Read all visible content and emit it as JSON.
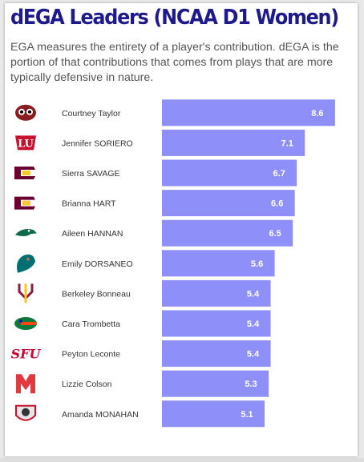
{
  "header": {
    "title": "dEGA Leaders (NCAA D1 Women)",
    "subtitle": "EGA measures the entirety of a player's contribution. dEGA is the portion of that contributions that comes from plays that are more typically defensive in nature."
  },
  "colors": {
    "title": "#1f1a8c",
    "bar": "#8e8ff8",
    "value_text": "#ffffff"
  },
  "chart_data": {
    "type": "bar",
    "orientation": "horizontal",
    "categories": [
      "Courtney Taylor",
      "Jennifer SORIERO",
      "Sierra SAVAGE",
      "Brianna HART",
      "Aileen HANNAN",
      "Emily DORSANEO",
      "Berkeley Bonneau",
      "Cara Trombetta",
      "Peyton Leconte",
      "Lizzie Colson",
      "Amanda MONAHAN"
    ],
    "values": [
      8.6,
      7.1,
      6.7,
      6.6,
      6.5,
      5.6,
      5.4,
      5.4,
      5.4,
      5.3,
      5.1
    ],
    "value_labels": [
      "8.6",
      "7.1",
      "6.7",
      "6.6",
      "6.5",
      "5.6",
      "5.4",
      "5.4",
      "5.4",
      "5.3",
      "5.1"
    ],
    "logos": [
      "owl-logo",
      "liberty-flames-logo",
      "central-michigan-logo",
      "central-michigan-logo",
      "eagle-head-logo",
      "chanticleer-logo",
      "pitchfork-logo",
      "gator-logo",
      "sfu-logo",
      "maryland-m-logo",
      "bearcat-shield-logo"
    ],
    "xlim": [
      0,
      9.8
    ],
    "title": "",
    "xlabel": "",
    "ylabel": "",
    "grid": false,
    "legend": "none"
  }
}
